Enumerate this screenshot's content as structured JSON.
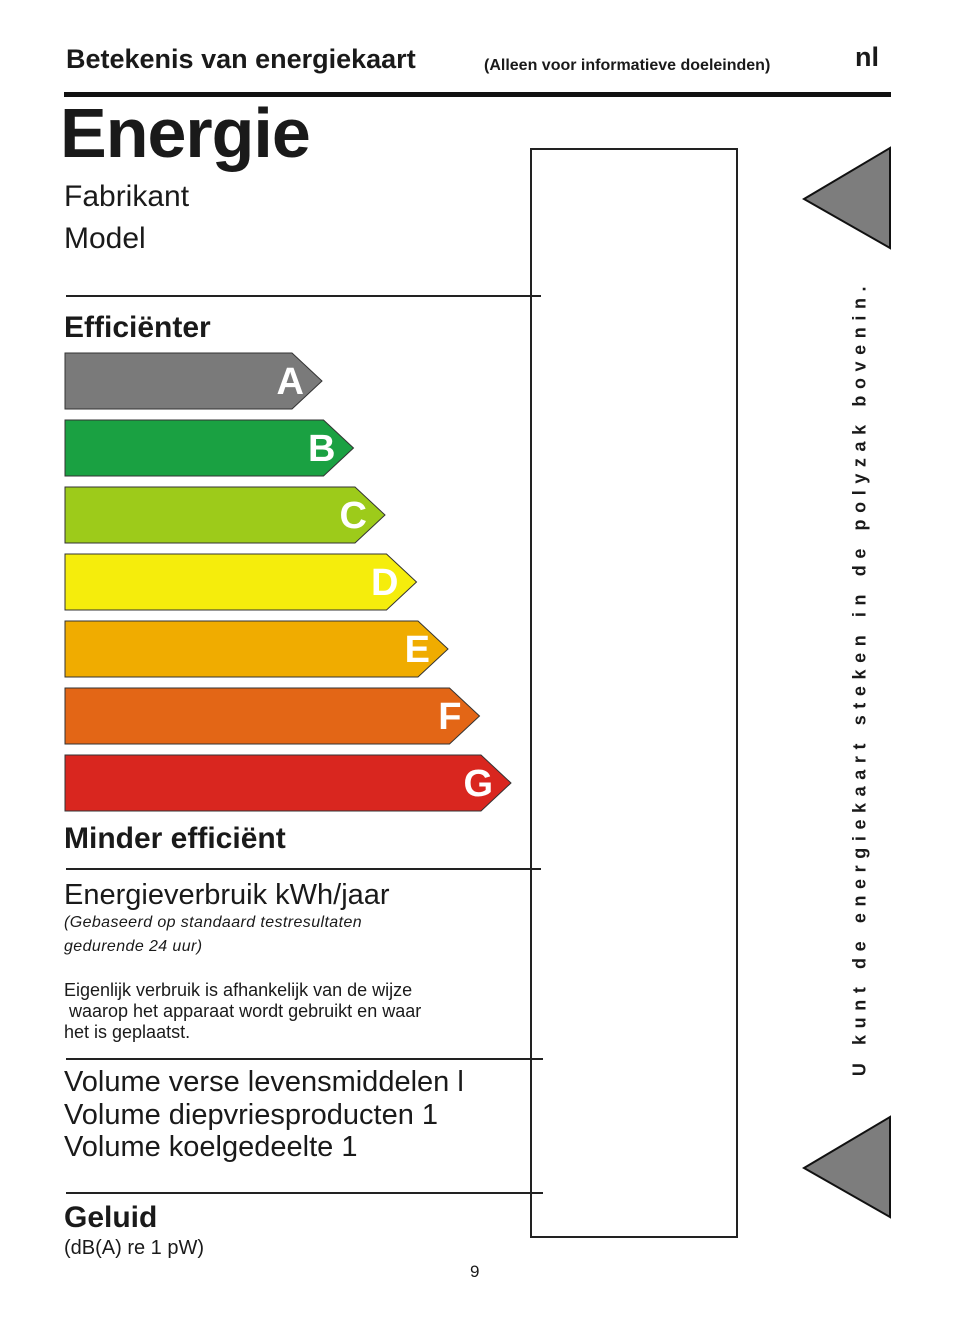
{
  "header": {
    "title": "Betekenis van energiekaart",
    "subtitle": "(Alleen voor informatieve doeleinden)",
    "language": "nl"
  },
  "label": {
    "title": "Energie",
    "manufacturer": "Fabrikant",
    "model": "Model",
    "more_efficient": "Efficiënter",
    "less_efficient": "Minder efficiënt",
    "classes": [
      {
        "letter": "A",
        "color": "#7a7a7a"
      },
      {
        "letter": "B",
        "color": "#1aa142"
      },
      {
        "letter": "C",
        "color": "#9dcb1a"
      },
      {
        "letter": "D",
        "color": "#f5ed0c"
      },
      {
        "letter": "E",
        "color": "#f0ac00"
      },
      {
        "letter": "F",
        "color": "#e36616"
      },
      {
        "letter": "G",
        "color": "#d9261f"
      }
    ],
    "consumption": {
      "title": "Energieverbruik kWh/jaar",
      "note_line1": "(Gebaseerd op standaard testresultaten",
      "note_line2": "gedurende 24 uur)",
      "text": "Eigenlijk verbruik is afhankelijk van de wijze\n waarop het apparaat wordt gebruikt en waar\nhet is geplaatst."
    },
    "volumes": [
      "Volume verse levensmiddelen l",
      "Volume diepvriesproducten 1",
      "Volume koelgedeelte 1"
    ],
    "noise": {
      "title": "Geluid",
      "unit": "(dB(A) re 1 pW)"
    }
  },
  "side_instruction": "U kunt de energiekaart steken in de polyzak bovenin.",
  "page_number": "9",
  "colors": {
    "triangle_fill": "#7d7d7d",
    "rule": "#111111"
  }
}
